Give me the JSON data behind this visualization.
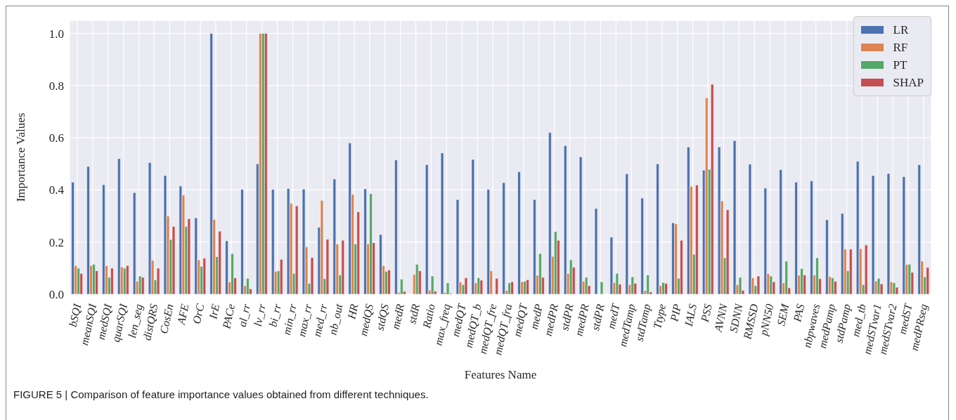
{
  "chart_data": {
    "type": "bar",
    "xlabel": "Features Name",
    "ylabel": "Importance Values",
    "annotations": [
      "FIGURE 5 | Comparison of feature importance values obtained from different techniques."
    ],
    "categories": [
      "bSQI",
      "meanSQI",
      "medSQI",
      "quarSQI",
      "len_seg",
      "distQRS",
      "CosEn",
      "AFE",
      "OrC",
      "IrE",
      "PACe",
      "al_rr",
      "lv_rr",
      "bi_rr",
      "min_rr",
      "max_rr",
      "med_rr",
      "nb_out",
      "HR",
      "medQS",
      "stdQS",
      "medR",
      "stdR",
      "Ratio",
      "max_freq",
      "medQT",
      "medQT_b",
      "medQT_fre",
      "medQT_fra",
      "medQT",
      "medP",
      "medPR",
      "stdPR",
      "medPR",
      "stdPR",
      "medT",
      "medTamp",
      "stdTamp",
      "Ttype",
      "PIP",
      "IALS",
      "PSS",
      "AVNN",
      "SDNN",
      "RMSSD",
      "pNN50",
      "SEM",
      "PAS",
      "nbpwaves",
      "medPamp",
      "stdPamp",
      "med_tb",
      "medSTvar1",
      "medSTvar2",
      "medST",
      "medPRseg"
    ],
    "series": [
      {
        "name": "LR",
        "color": "#4c72b0",
        "values": [
          0.43,
          0.49,
          0.42,
          0.52,
          0.39,
          0.505,
          0.455,
          0.415,
          0.293,
          1.0,
          0.205,
          0.402,
          0.5,
          0.402,
          0.405,
          0.403,
          0.257,
          0.442,
          0.58,
          0.404,
          0.229,
          0.515,
          0,
          0.497,
          0.542,
          0.363,
          0.517,
          0.402,
          0.428,
          0.47,
          0.363,
          0.62,
          0.57,
          0.527,
          0.329,
          0.219,
          0.462,
          0.369,
          0.5,
          0.274,
          0.565,
          0.476,
          0.565,
          0.589,
          0.499,
          0.407,
          0.478,
          0.43,
          0.435,
          0.286,
          0.31,
          0.51,
          0.455,
          0.463,
          0.451,
          0.497
        ]
      },
      {
        "name": "RF",
        "color": "#dd8452",
        "values": [
          0.11,
          0.11,
          0.11,
          0.105,
          0.05,
          0.13,
          0.3,
          0.38,
          0.132,
          0.287,
          0.047,
          0.033,
          1.0,
          0.088,
          0.349,
          0.182,
          0.36,
          0.193,
          0.383,
          0.193,
          0.11,
          0.007,
          0.076,
          0.016,
          0.007,
          0.047,
          0.044,
          0.09,
          0.015,
          0.048,
          0.073,
          0.145,
          0.08,
          0.05,
          0,
          0.045,
          0.037,
          0.014,
          0.033,
          0.27,
          0.414,
          0.753,
          0.358,
          0.037,
          0.063,
          0.079,
          0.044,
          0.073,
          0.074,
          0.068,
          0.173,
          0.175,
          0.051,
          0.048,
          0.114,
          0.127
        ]
      },
      {
        "name": "PT",
        "color": "#55a868",
        "values": [
          0.1,
          0.115,
          0.065,
          0.1,
          0.07,
          0.055,
          0.21,
          0.26,
          0.107,
          0.144,
          0.156,
          0.061,
          1.0,
          0.09,
          0.08,
          0.042,
          0.06,
          0.074,
          0.193,
          0.386,
          0.088,
          0.058,
          0.115,
          0.07,
          0.044,
          0.037,
          0.063,
          0,
          0.044,
          0.05,
          0.156,
          0.24,
          0.132,
          0.065,
          0.048,
          0.08,
          0.067,
          0.074,
          0.045,
          0.061,
          0.153,
          0.479,
          0.14,
          0.065,
          0.033,
          0.07,
          0.127,
          0.099,
          0.14,
          0.063,
          0.09,
          0.037,
          0.061,
          0.044,
          0.115,
          0.067
        ]
      },
      {
        "name": "SHAP",
        "color": "#c44e52",
        "values": [
          0.08,
          0.09,
          0.1,
          0.11,
          0.065,
          0.1,
          0.26,
          0.29,
          0.138,
          0.242,
          0.063,
          0.021,
          1.0,
          0.134,
          0.339,
          0.141,
          0.211,
          0.207,
          0.316,
          0.198,
          0.093,
          0.011,
          0.09,
          0.012,
          0.004,
          0.063,
          0.054,
          0.061,
          0.048,
          0.056,
          0.065,
          0.207,
          0.104,
          0.033,
          0,
          0.039,
          0.042,
          0.009,
          0.042,
          0.207,
          0.419,
          0.805,
          0.324,
          0.015,
          0.07,
          0.048,
          0.025,
          0.074,
          0.06,
          0.05,
          0.173,
          0.189,
          0.04,
          0.027,
          0.084,
          0.103
        ]
      }
    ],
    "ylim": [
      0,
      1.05
    ],
    "yticks": [
      {
        "value": 0,
        "label": "0.0"
      },
      {
        "value": 0.2,
        "label": "0.2"
      },
      {
        "value": 0.4,
        "label": "0.4"
      },
      {
        "value": 0.6,
        "label": "0.6"
      },
      {
        "value": 0.8,
        "label": "0.8"
      },
      {
        "value": 1,
        "label": "1.0"
      }
    ],
    "grid": true,
    "legend": "top right"
  }
}
